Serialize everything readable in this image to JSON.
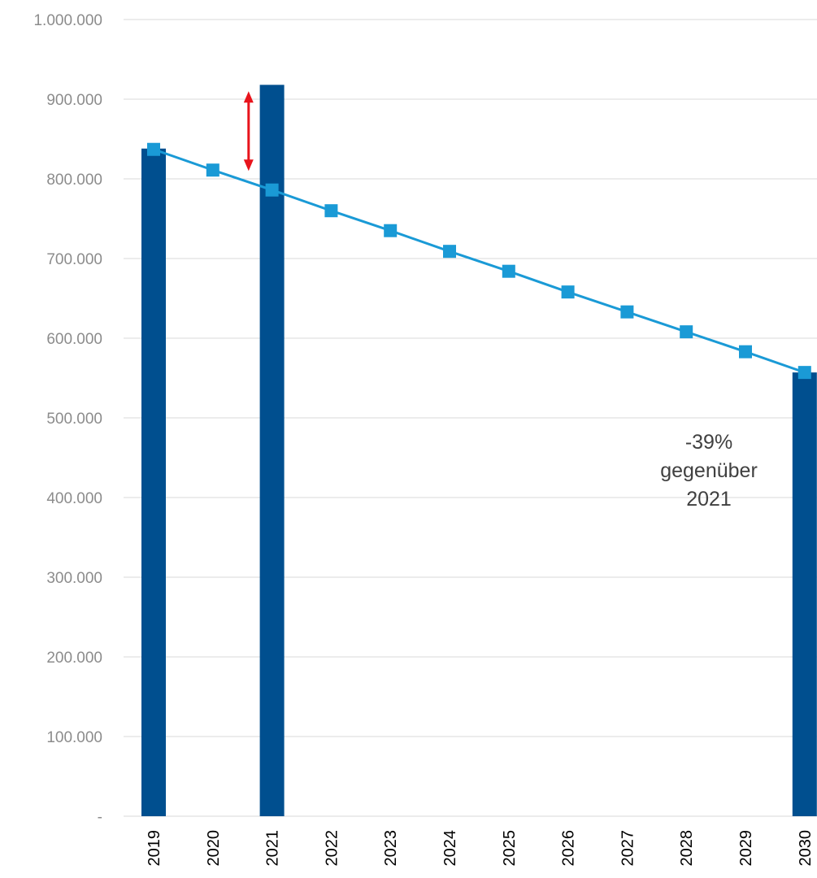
{
  "chart_data": {
    "type": "bar",
    "categories": [
      "2019",
      "2020",
      "2021",
      "2022",
      "2023",
      "2024",
      "2025",
      "2026",
      "2027",
      "2028",
      "2029",
      "2030"
    ],
    "ylim": [
      0,
      1000000
    ],
    "yticks": [
      0,
      100000,
      200000,
      300000,
      400000,
      500000,
      600000,
      700000,
      800000,
      900000,
      1000000
    ],
    "ytick_labels": [
      "-",
      "100.000",
      "200.000",
      "300.000",
      "400.000",
      "500.000",
      "600.000",
      "700.000",
      "800.000",
      "900.000",
      "1.000.000"
    ],
    "grid": true,
    "series": [
      {
        "kind": "bar",
        "color": "#004f8f",
        "values": [
          838000,
          null,
          918000,
          null,
          null,
          null,
          null,
          null,
          null,
          null,
          null,
          557000
        ]
      },
      {
        "kind": "line",
        "marker": "square",
        "color": "#1a9ad6",
        "values": [
          837000,
          811000,
          786000,
          760000,
          735000,
          709000,
          684000,
          658000,
          633000,
          608000,
          583000,
          557000
        ]
      }
    ],
    "annotations": [
      {
        "kind": "double-arrow",
        "category": "2020",
        "from": 910000,
        "to": 810000,
        "color": "#e8141c"
      },
      {
        "kind": "text",
        "lines": [
          "-39%",
          "gegenüber",
          "2021"
        ]
      }
    ]
  }
}
